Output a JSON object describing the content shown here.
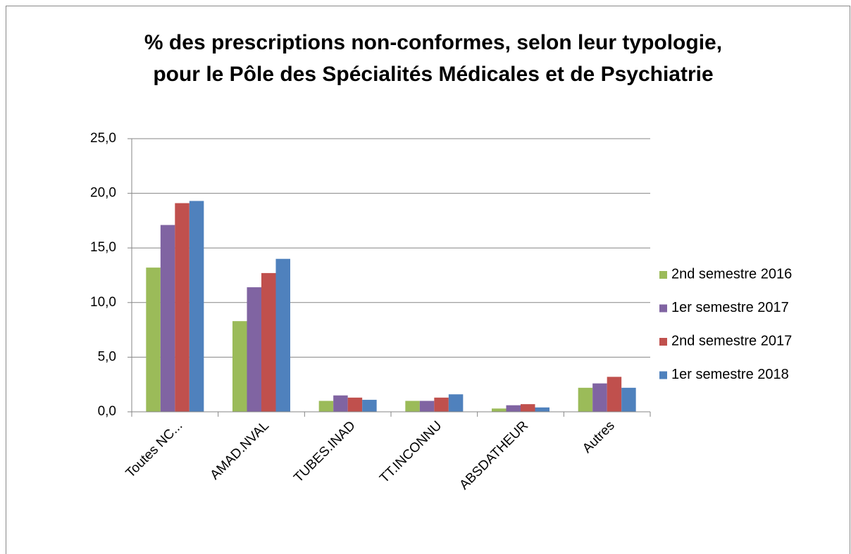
{
  "chart_data": {
    "type": "bar",
    "title": [
      "% des prescriptions non-conformes, selon leur typologie,",
      "pour le Pôle des Spécialités Médicales et de Psychiatrie"
    ],
    "categories": [
      "Toutes NC...",
      "AMAD.NVAL",
      "TUBES.INAD",
      "TT.INCONNU",
      "ABSDATHEUR",
      "Autres"
    ],
    "series": [
      {
        "name": "2nd semestre 2016",
        "color": "#9bbb59",
        "values": [
          13.2,
          8.3,
          1.0,
          1.0,
          0.3,
          2.2
        ]
      },
      {
        "name": "1er semestre 2017",
        "color": "#8064a2",
        "values": [
          17.1,
          11.4,
          1.5,
          1.0,
          0.6,
          2.6
        ]
      },
      {
        "name": "2nd semestre 2017",
        "color": "#c0504d",
        "values": [
          19.1,
          12.7,
          1.3,
          1.3,
          0.7,
          3.2
        ]
      },
      {
        "name": "1er semestre 2018",
        "color": "#4f81bd",
        "values": [
          19.3,
          14.0,
          1.1,
          1.6,
          0.4,
          2.2
        ]
      }
    ],
    "ylim": [
      0,
      25
    ],
    "yticks": [
      {
        "value": 0,
        "label": "0,0"
      },
      {
        "value": 5,
        "label": "5,0"
      },
      {
        "value": 10,
        "label": "10,0"
      },
      {
        "value": 15,
        "label": "15,0"
      },
      {
        "value": 20,
        "label": "20,0"
      },
      {
        "value": 25,
        "label": "25,0"
      }
    ],
    "grid": true,
    "legend": "right"
  }
}
